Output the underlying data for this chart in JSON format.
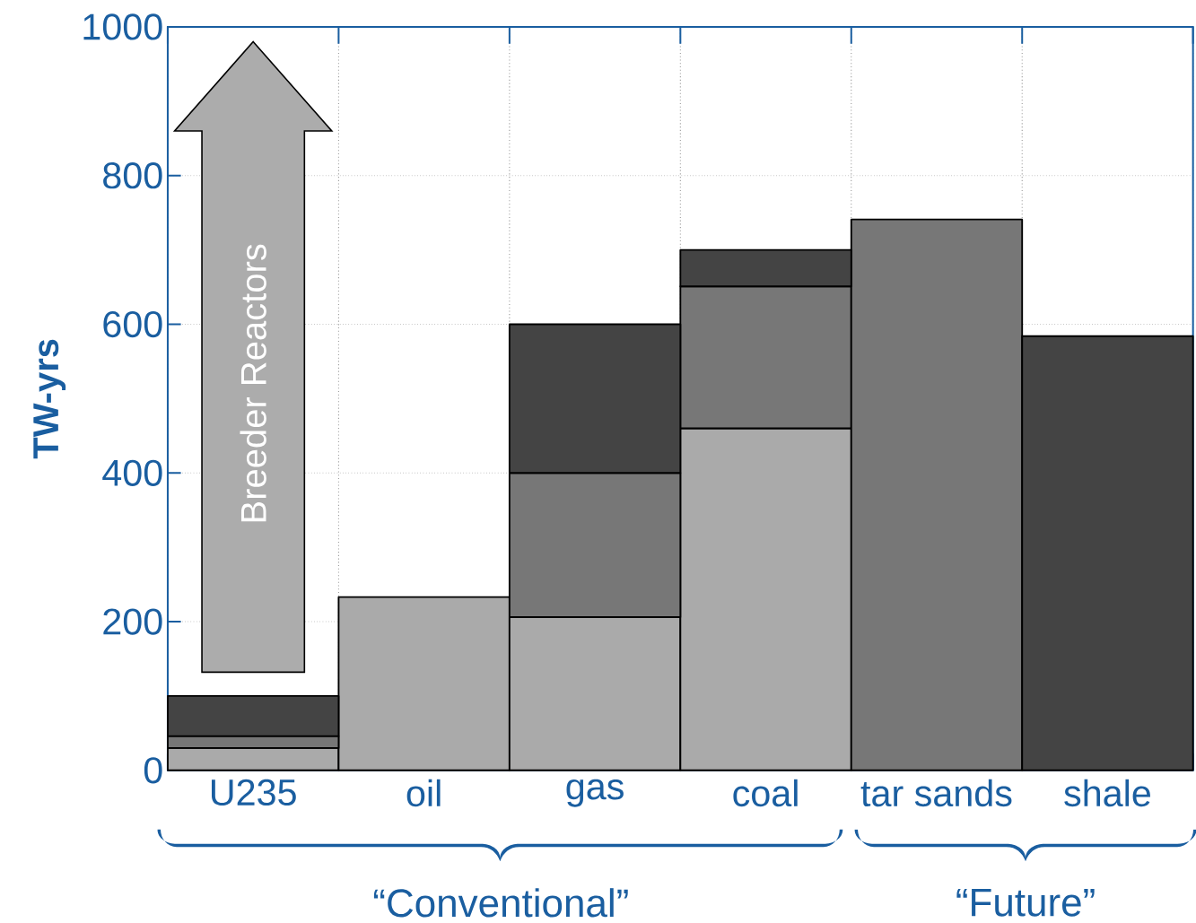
{
  "chart_data": {
    "type": "bar",
    "stacked": true,
    "ylabel": "TW-yrs",
    "categories": [
      "U235",
      "oil",
      "gas",
      "coal",
      "tar sands",
      "shale"
    ],
    "series": [
      {
        "color": "#aaaaaa",
        "values": [
          30,
          233,
          206,
          460,
          null,
          null
        ]
      },
      {
        "color": "#777777",
        "values": [
          16,
          null,
          194,
          191,
          741,
          null
        ]
      },
      {
        "color": "#444444",
        "values": [
          54,
          null,
          200,
          49,
          null,
          584
        ]
      }
    ],
    "ylim": [
      0,
      1000
    ],
    "yticks": [
      0,
      200,
      400,
      600,
      800,
      1000
    ],
    "grid": true,
    "annotations": [
      "Breeder Reactors",
      "“Conventional”",
      "“Future”"
    ]
  }
}
